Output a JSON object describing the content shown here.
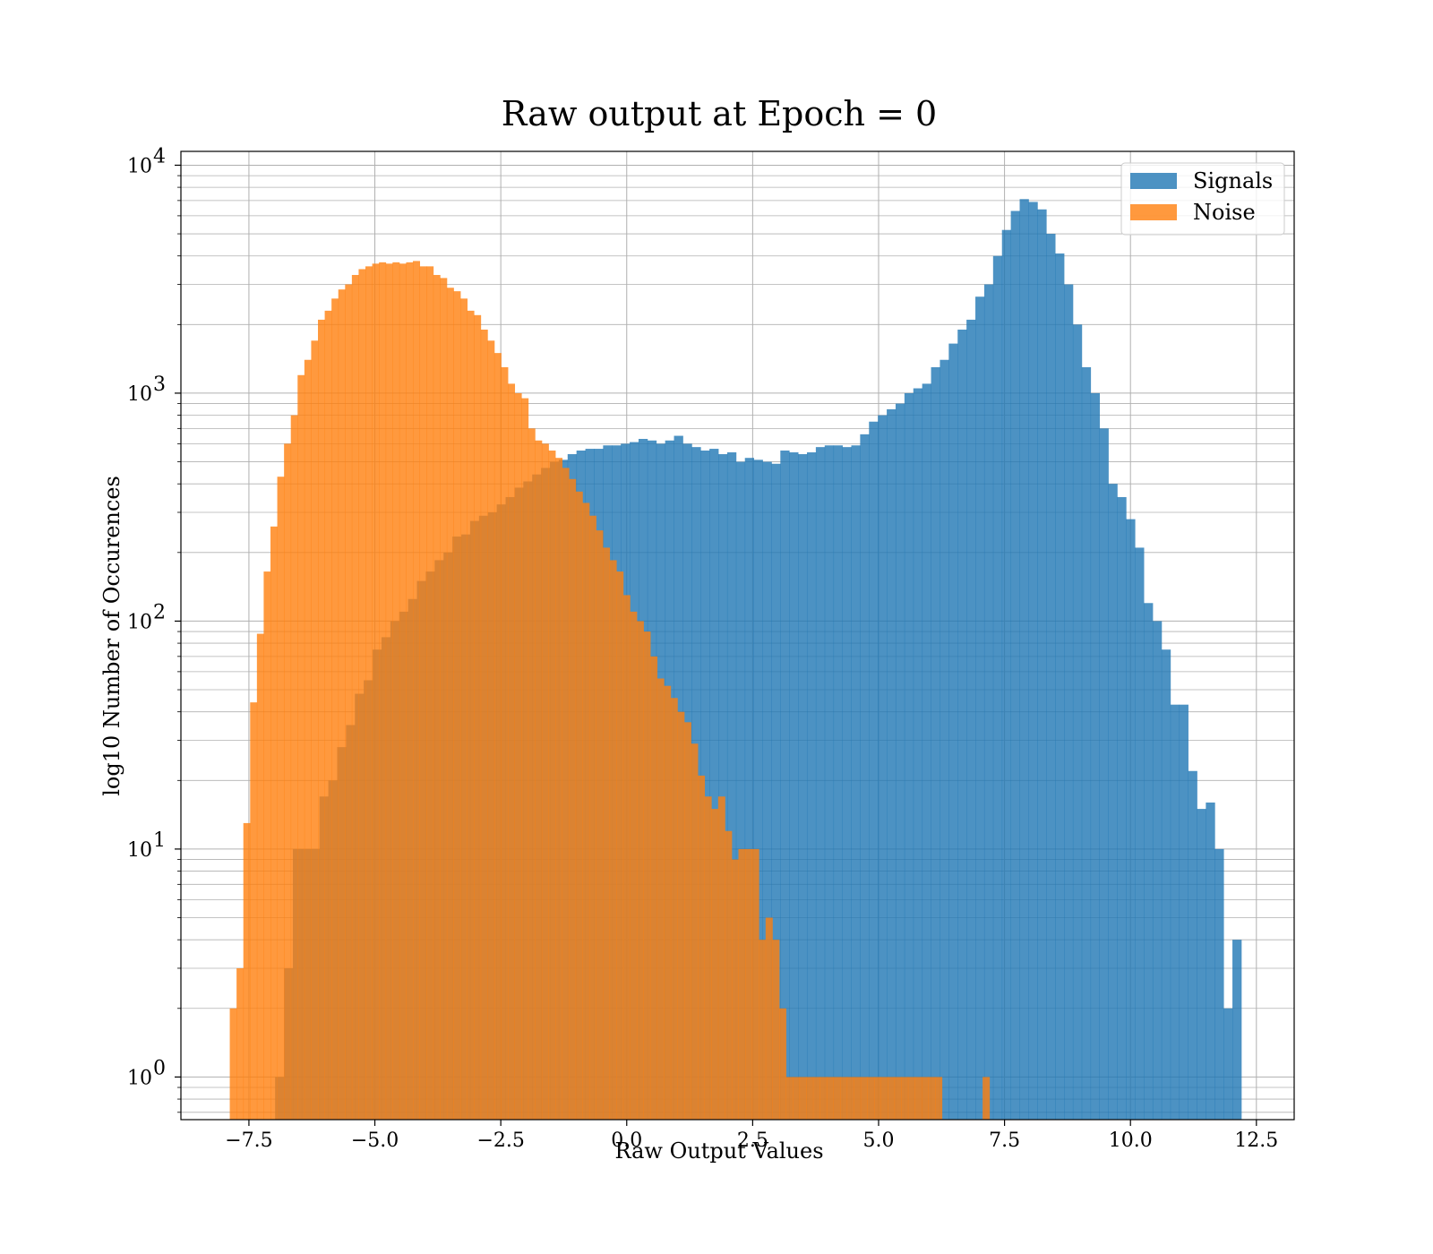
{
  "chart_data": {
    "type": "bar",
    "title": "Raw output at Epoch = 0",
    "xlabel": "Raw Output Values",
    "ylabel": "log10 Number of Occurences",
    "yscale": "log",
    "xlim": [
      -8.85,
      13.25
    ],
    "ylim": [
      0.65,
      11500
    ],
    "grid": true,
    "legend_position": "top-right",
    "x_ticks": [
      -7.5,
      -5.0,
      -2.5,
      0.0,
      2.5,
      5.0,
      7.5,
      10.0,
      12.5
    ],
    "x_tick_labels": [
      "−7.5",
      "−5.0",
      "−2.5",
      "0.0",
      "2.5",
      "5.0",
      "7.5",
      "10.0",
      "12.5"
    ],
    "y_ticks": [
      1,
      10,
      100,
      1000,
      10000
    ],
    "y_tick_bases": [
      "10",
      "10",
      "10",
      "10",
      "10"
    ],
    "y_tick_exponents": [
      "0",
      "1",
      "2",
      "3",
      "4"
    ],
    "series": [
      {
        "name": "Signals",
        "color": "#1f77b4",
        "opacity": 0.8,
        "x_start": -6.98,
        "x_end": 12.2,
        "counts": [
          1,
          3,
          10,
          10,
          10,
          17,
          20,
          28,
          35,
          48,
          55,
          75,
          85,
          100,
          110,
          125,
          150,
          165,
          185,
          200,
          235,
          240,
          275,
          290,
          300,
          325,
          350,
          385,
          410,
          440,
          470,
          500,
          510,
          540,
          560,
          570,
          570,
          590,
          590,
          600,
          610,
          630,
          620,
          600,
          620,
          650,
          600,
          580,
          560,
          570,
          540,
          550,
          500,
          520,
          510,
          500,
          490,
          560,
          550,
          540,
          550,
          580,
          590,
          590,
          580,
          590,
          660,
          750,
          800,
          850,
          900,
          1000,
          1050,
          1100,
          1300,
          1400,
          1650,
          1900,
          2100,
          2650,
          3000,
          4000,
          5200,
          6300,
          7100,
          6900,
          6400,
          5000,
          4100,
          3000,
          2000,
          1300,
          1000,
          700,
          400,
          350,
          280,
          210,
          120,
          100,
          75,
          43,
          43,
          22,
          15,
          16,
          10,
          2,
          4
        ]
      },
      {
        "name": "Noise",
        "color": "#ff7f0e",
        "opacity": 0.8,
        "x_start": -7.88,
        "x_end": 7.2,
        "counts": [
          2,
          3,
          13,
          44,
          88,
          165,
          260,
          430,
          600,
          800,
          1200,
          1400,
          1700,
          2100,
          2300,
          2600,
          2850,
          3000,
          3300,
          3500,
          3600,
          3700,
          3750,
          3700,
          3750,
          3700,
          3750,
          3800,
          3600,
          3600,
          3300,
          3200,
          2900,
          2800,
          2600,
          2300,
          2200,
          1900,
          1700,
          1500,
          1300,
          1100,
          1000,
          950,
          700,
          620,
          600,
          560,
          520,
          470,
          420,
          370,
          330,
          290,
          250,
          210,
          185,
          165,
          130,
          110,
          100,
          90,
          70,
          56,
          52,
          46,
          40,
          36,
          29,
          21,
          17,
          15,
          17,
          12,
          9,
          10,
          10,
          10,
          4,
          5,
          4,
          2,
          1,
          1,
          1,
          1,
          1,
          1,
          1,
          1,
          1,
          1,
          1,
          1,
          1,
          1,
          1,
          1,
          1,
          1,
          1,
          1,
          1,
          1,
          1,
          0,
          0,
          0,
          0,
          0,
          0,
          1
        ]
      }
    ]
  }
}
